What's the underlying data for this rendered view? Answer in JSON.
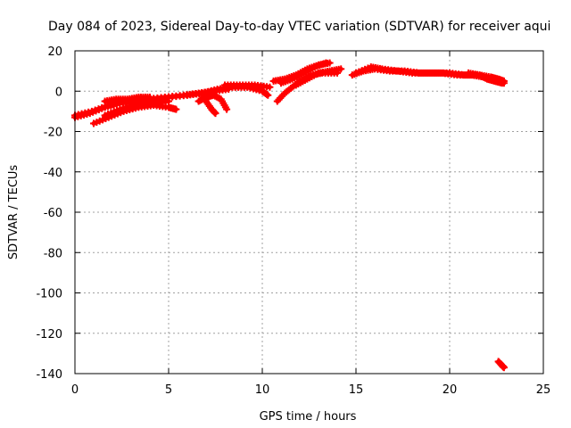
{
  "chart_data": {
    "type": "scatter",
    "title": "Day 084 of 2023, Sidereal Day-to-day VTEC variation (SDTVAR) for receiver aqui",
    "xlabel": "GPS time / hours",
    "ylabel": "SDTVAR / TECUs",
    "xlim": [
      0,
      25
    ],
    "ylim": [
      -140,
      20
    ],
    "xticks": [
      "0",
      "5",
      "10",
      "15",
      "20",
      "25"
    ],
    "yticks": [
      "20",
      "0",
      "-20",
      "-40",
      "-60",
      "-80",
      "-100",
      "-120",
      "-140"
    ],
    "grid": true,
    "series": [
      {
        "name": "SDTVAR",
        "color": "#ff0000",
        "marker": "plus",
        "tracks": [
          [
            [
              0.0,
              -13
            ],
            [
              0.8,
              -11
            ],
            [
              1.6,
              -8
            ],
            [
              2.4,
              -6
            ],
            [
              3.2,
              -5
            ],
            [
              4.0,
              -4
            ],
            [
              5.0,
              -3
            ],
            [
              6.0,
              -2
            ],
            [
              6.8,
              -1
            ],
            [
              7.6,
              1
            ],
            [
              8.4,
              2
            ],
            [
              9.2,
              2
            ],
            [
              10.0,
              2
            ]
          ],
          [
            [
              0.0,
              -12
            ],
            [
              0.9,
              -10
            ],
            [
              1.8,
              -7
            ],
            [
              2.8,
              -5
            ],
            [
              3.8,
              -4
            ],
            [
              4.8,
              -3
            ],
            [
              5.8,
              -2
            ],
            [
              6.6,
              -1
            ],
            [
              7.4,
              0
            ],
            [
              8.2,
              1
            ]
          ],
          [
            [
              1.0,
              -16
            ],
            [
              1.8,
              -13
            ],
            [
              2.6,
              -10
            ],
            [
              3.4,
              -8
            ],
            [
              4.2,
              -7
            ],
            [
              5.0,
              -8
            ],
            [
              5.4,
              -9
            ]
          ],
          [
            [
              1.6,
              -12
            ],
            [
              2.4,
              -9
            ],
            [
              3.2,
              -7
            ],
            [
              4.0,
              -6
            ],
            [
              4.6,
              -6
            ]
          ],
          [
            [
              1.6,
              -5
            ],
            [
              2.2,
              -4
            ],
            [
              2.8,
              -4
            ],
            [
              3.4,
              -3
            ],
            [
              4.0,
              -3
            ]
          ],
          [
            [
              2.6,
              -9
            ],
            [
              3.4,
              -6
            ],
            [
              4.2,
              -5
            ],
            [
              5.0,
              -5
            ]
          ],
          [
            [
              6.6,
              -5
            ],
            [
              7.0,
              -3
            ],
            [
              7.4,
              -2
            ],
            [
              7.8,
              -4
            ],
            [
              8.1,
              -9
            ]
          ],
          [
            [
              6.8,
              -1
            ],
            [
              7.0,
              -5
            ],
            [
              7.3,
              -9
            ],
            [
              7.5,
              -11
            ]
          ],
          [
            [
              8.0,
              3
            ],
            [
              8.8,
              3
            ],
            [
              9.6,
              3
            ],
            [
              10.4,
              2
            ]
          ],
          [
            [
              8.4,
              2
            ],
            [
              9.2,
              2
            ],
            [
              10.0,
              0
            ],
            [
              10.3,
              -2
            ]
          ],
          [
            [
              10.8,
              -5
            ],
            [
              11.2,
              -1
            ],
            [
              11.6,
              2
            ],
            [
              12.0,
              5
            ],
            [
              12.6,
              8
            ],
            [
              13.2,
              9
            ],
            [
              14.0,
              9
            ]
          ],
          [
            [
              10.6,
              5
            ],
            [
              11.2,
              6
            ],
            [
              11.8,
              8
            ],
            [
              12.4,
              11
            ],
            [
              13.0,
              13
            ],
            [
              13.6,
              14
            ]
          ],
          [
            [
              11.0,
              4
            ],
            [
              11.6,
              6
            ],
            [
              12.2,
              9
            ],
            [
              12.8,
              12
            ],
            [
              13.4,
              14
            ]
          ],
          [
            [
              11.8,
              3
            ],
            [
              12.4,
              6
            ],
            [
              13.0,
              9
            ],
            [
              13.6,
              10
            ],
            [
              14.2,
              11
            ]
          ],
          [
            [
              14.8,
              8
            ],
            [
              15.4,
              10
            ],
            [
              16.0,
              11
            ],
            [
              16.8,
              10
            ],
            [
              17.6,
              10
            ],
            [
              18.4,
              9
            ],
            [
              19.2,
              9
            ],
            [
              20.0,
              9
            ],
            [
              20.8,
              8
            ],
            [
              21.6,
              8
            ],
            [
              22.2,
              7
            ],
            [
              22.6,
              6
            ],
            [
              22.9,
              5
            ]
          ],
          [
            [
              15.0,
              9
            ],
            [
              15.8,
              12
            ],
            [
              16.4,
              11
            ],
            [
              17.2,
              10
            ],
            [
              18.0,
              9
            ],
            [
              18.8,
              9
            ],
            [
              19.6,
              9
            ],
            [
              20.4,
              8
            ],
            [
              21.2,
              8
            ],
            [
              21.8,
              7
            ],
            [
              22.4,
              5
            ],
            [
              22.8,
              4
            ]
          ],
          [
            [
              21.0,
              9
            ],
            [
              21.6,
              8
            ],
            [
              22.0,
              6
            ],
            [
              22.4,
              5
            ],
            [
              22.9,
              4
            ]
          ],
          [
            [
              22.6,
              -134
            ],
            [
              22.8,
              -136
            ],
            [
              22.9,
              -137
            ]
          ]
        ]
      }
    ]
  }
}
